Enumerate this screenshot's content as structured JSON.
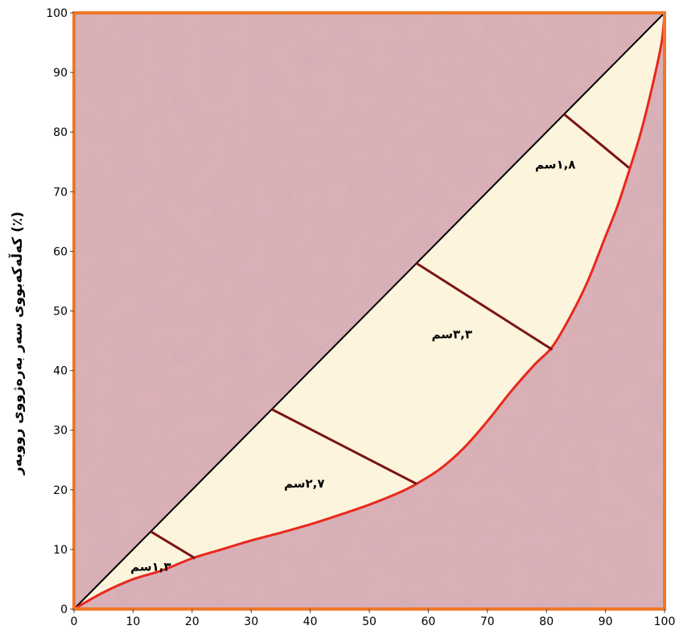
{
  "chart_data": {
    "type": "line",
    "title": "",
    "xlabel": "",
    "ylabel": "کەڵەکەبووی سەر بەرەژووی رووبەر (٪)",
    "xlim": [
      0,
      100
    ],
    "ylim": [
      0,
      100
    ],
    "x_ticks": [
      "0",
      "10",
      "20",
      "30",
      "40",
      "50",
      "60",
      "70",
      "80",
      "90",
      "100"
    ],
    "y_ticks": [
      "0",
      "10",
      "20",
      "30",
      "40",
      "50",
      "60",
      "70",
      "80",
      "90",
      "100"
    ],
    "grid": false,
    "colors": {
      "plot_background": "#dcb1b8",
      "frame": "#f07828",
      "equality_line": "#000000",
      "curve": "#e8281c",
      "fill_between": "#fcf4dc",
      "segments": "#7a1414"
    },
    "series": [
      {
        "kind": "equality-line",
        "x": [
          0,
          100
        ],
        "y": [
          0,
          100
        ]
      },
      {
        "kind": "curve",
        "x": [
          0,
          5,
          10,
          15,
          20,
          25,
          30,
          35,
          40,
          45,
          50,
          55,
          58,
          62,
          66,
          70,
          74,
          78,
          81,
          84,
          87,
          90,
          92,
          94,
          96,
          98,
          99.5,
          100
        ],
        "y": [
          0,
          2.8,
          5,
          6.5,
          8.5,
          10,
          11.5,
          12.8,
          14.2,
          15.8,
          17.5,
          19.5,
          21,
          23.5,
          27,
          31.5,
          36.5,
          41,
          44,
          49,
          55,
          62.5,
          67.5,
          73.5,
          80,
          88,
          95,
          100
        ]
      }
    ],
    "segments": [
      {
        "from": [
          13,
          13
        ],
        "to": [
          20.5,
          8.5
        ],
        "label": "١,٣سم",
        "label_at": [
          13,
          7
        ]
      },
      {
        "from": [
          33.5,
          33.5
        ],
        "to": [
          58,
          21
        ],
        "label": "٢,٧سم",
        "label_at": [
          39,
          21
        ]
      },
      {
        "from": [
          58,
          58
        ],
        "to": [
          81,
          43.5
        ],
        "label": "٣,٣سم",
        "label_at": [
          64,
          46
        ]
      },
      {
        "from": [
          83,
          83
        ],
        "to": [
          94,
          74
        ],
        "label": "١,٨سم",
        "label_at": [
          81.5,
          74.5
        ]
      }
    ]
  }
}
